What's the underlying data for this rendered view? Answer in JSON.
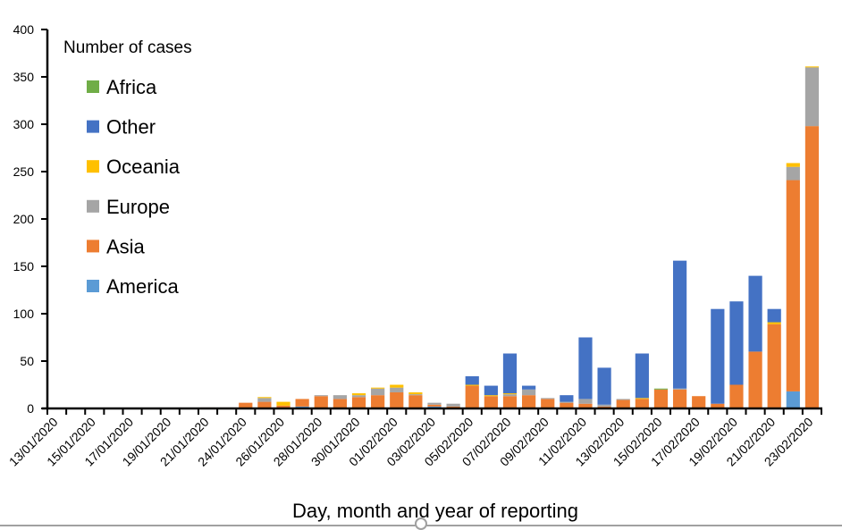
{
  "chart_data": {
    "type": "bar",
    "stacked": true,
    "title": "",
    "xlabel": "Day, month and year of reporting",
    "ylabel": "",
    "ylim": [
      0,
      400
    ],
    "yticks": [
      0,
      50,
      100,
      150,
      200,
      250,
      300,
      350,
      400
    ],
    "grid": false,
    "legend": {
      "title": "Number of cases",
      "placement": "top-left",
      "order": [
        "Africa",
        "Other",
        "Oceania",
        "Europe",
        "Asia",
        "America"
      ]
    },
    "categories": [
      "13/01/2020",
      "14/01/2020",
      "15/01/2020",
      "16/01/2020",
      "17/01/2020",
      "18/01/2020",
      "19/01/2020",
      "20/01/2020",
      "21/01/2020",
      "23/01/2020",
      "24/01/2020",
      "25/01/2020",
      "26/01/2020",
      "27/01/2020",
      "28/01/2020",
      "29/01/2020",
      "30/01/2020",
      "31/01/2020",
      "01/02/2020",
      "02/02/2020",
      "03/02/2020",
      "04/02/2020",
      "05/02/2020",
      "06/02/2020",
      "07/02/2020",
      "08/02/2020",
      "09/02/2020",
      "10/02/2020",
      "11/02/2020",
      "12/02/2020",
      "13/02/2020",
      "14/02/2020",
      "15/02/2020",
      "16/02/2020",
      "17/02/2020",
      "18/02/2020",
      "19/02/2020",
      "20/02/2020",
      "21/02/2020",
      "22/02/2020",
      "23/02/2020"
    ],
    "visible_tick_labels": [
      "13/01/2020",
      "15/01/2020",
      "17/01/2020",
      "19/01/2020",
      "21/01/2020",
      "24/01/2020",
      "26/01/2020",
      "28/01/2020",
      "30/01/2020",
      "01/02/2020",
      "03/02/2020",
      "05/02/2020",
      "07/02/2020",
      "09/02/2020",
      "11/02/2020",
      "13/02/2020",
      "15/02/2020",
      "17/02/2020",
      "19/02/2020",
      "21/02/2020",
      "23/02/2020"
    ],
    "series": [
      {
        "name": "America",
        "color": "#5B9BD5",
        "values": [
          0,
          0,
          0,
          0,
          0,
          0,
          0,
          0,
          0,
          0,
          0,
          0,
          0,
          2,
          0,
          0,
          0,
          0,
          1,
          0,
          2,
          0,
          0,
          0,
          1,
          0,
          0,
          0,
          0,
          0,
          0,
          0,
          0,
          0,
          0,
          0,
          0,
          0,
          1,
          18,
          0
        ]
      },
      {
        "name": "Asia",
        "color": "#ED7D31",
        "values": [
          0,
          0,
          0,
          0,
          0,
          0,
          0,
          0,
          1,
          1,
          6,
          7,
          3,
          8,
          13,
          10,
          12,
          14,
          16,
          14,
          2,
          2,
          24,
          13,
          12,
          14,
          10,
          6,
          5,
          2,
          9,
          10,
          20,
          20,
          13,
          5,
          25,
          60,
          88,
          223,
          298
        ]
      },
      {
        "name": "Europe",
        "color": "#A5A5A5",
        "values": [
          0,
          0,
          0,
          0,
          0,
          0,
          0,
          0,
          0,
          0,
          0,
          4,
          0,
          0,
          1,
          4,
          2,
          7,
          5,
          1,
          2,
          3,
          0,
          0,
          2,
          6,
          1,
          1,
          5,
          2,
          1,
          0,
          0,
          1,
          0,
          0,
          0,
          0,
          0,
          14,
          62
        ]
      },
      {
        "name": "Oceania",
        "color": "#FFC000",
        "values": [
          0,
          0,
          0,
          0,
          0,
          0,
          0,
          0,
          0,
          0,
          0,
          1,
          4,
          0,
          0,
          0,
          2,
          1,
          3,
          2,
          0,
          0,
          1,
          1,
          1,
          0,
          0,
          0,
          0,
          0,
          0,
          1,
          0,
          0,
          0,
          0,
          0,
          0,
          2,
          4,
          1
        ]
      },
      {
        "name": "Other",
        "color": "#4472C4",
        "values": [
          0,
          0,
          0,
          0,
          0,
          0,
          0,
          0,
          0,
          0,
          0,
          0,
          0,
          0,
          0,
          0,
          0,
          0,
          0,
          0,
          0,
          0,
          9,
          10,
          42,
          4,
          0,
          7,
          65,
          39,
          0,
          47,
          0,
          135,
          0,
          100,
          88,
          80,
          14,
          0,
          0
        ]
      },
      {
        "name": "Africa",
        "color": "#70AD47",
        "values": [
          0,
          0,
          0,
          0,
          0,
          0,
          0,
          0,
          0,
          0,
          0,
          0,
          0,
          0,
          0,
          0,
          0,
          0,
          0,
          0,
          0,
          0,
          0,
          0,
          0,
          0,
          0,
          0,
          0,
          0,
          0,
          0,
          1,
          0,
          0,
          0,
          0,
          0,
          0,
          0,
          0
        ]
      }
    ]
  }
}
